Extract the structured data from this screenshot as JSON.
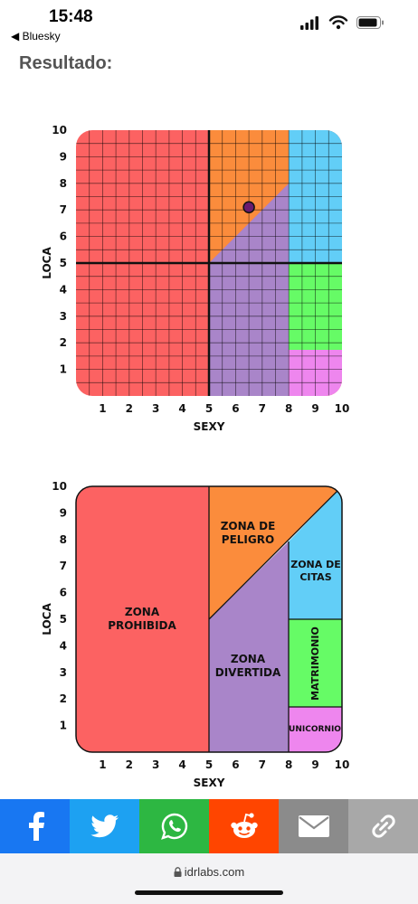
{
  "status": {
    "time": "15:48",
    "back_app": "◀ Bluesky"
  },
  "page": {
    "title": "Resultado:"
  },
  "chart1": {
    "ylabel": "LOCA",
    "xlabel": "SEXY",
    "ticks": [
      "1",
      "2",
      "3",
      "4",
      "5",
      "6",
      "7",
      "8",
      "9",
      "10"
    ]
  },
  "chart2": {
    "ylabel": "LOCA",
    "xlabel": "SEXY",
    "ticks": [
      "1",
      "2",
      "3",
      "4",
      "5",
      "6",
      "7",
      "8",
      "9",
      "10"
    ],
    "zones": {
      "prohibida": [
        "ZONA",
        "PROHIBIDA"
      ],
      "peligro": [
        "ZONA DE",
        "PELIGRO"
      ],
      "citas": [
        "ZONA DE",
        "CITAS"
      ],
      "divertida": [
        "ZONA",
        "DIVERTIDA"
      ],
      "matrimonio": "MATRIMONIO",
      "unicornio": "UNICORNIO"
    }
  },
  "colors": {
    "red": "#fc6262",
    "orange": "#fb8c3c",
    "blue": "#62cef7",
    "purple": "#a985c9",
    "green": "#66fb66",
    "pink": "#ee86ee"
  },
  "chart_data": {
    "type": "scatter",
    "xlabel": "SEXY",
    "ylabel": "LOCA",
    "xlim": [
      0,
      10
    ],
    "ylim": [
      0,
      10
    ],
    "grid": true,
    "points": [
      {
        "x": 6.5,
        "y": 7.1
      }
    ]
  },
  "share": [
    {
      "name": "facebook",
      "color": "#1877f2",
      "icon": "facebook-icon"
    },
    {
      "name": "twitter",
      "color": "#1da1f2",
      "icon": "twitter-icon"
    },
    {
      "name": "whatsapp",
      "color": "#2db742",
      "icon": "whatsapp-icon"
    },
    {
      "name": "reddit",
      "color": "#ff4500",
      "icon": "reddit-icon"
    },
    {
      "name": "email",
      "color": "#8b8b8b",
      "icon": "envelope-icon"
    },
    {
      "name": "link",
      "color": "#a8a8a8",
      "icon": "link-icon"
    }
  ],
  "url": {
    "domain": "idrlabs.com"
  }
}
